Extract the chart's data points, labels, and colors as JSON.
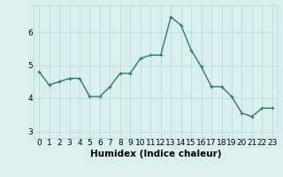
{
  "xlabel": "Humidex (Indice chaleur)",
  "x": [
    0,
    1,
    2,
    3,
    4,
    5,
    6,
    7,
    8,
    9,
    10,
    11,
    12,
    13,
    14,
    15,
    16,
    17,
    18,
    19,
    20,
    21,
    22,
    23
  ],
  "y": [
    4.8,
    4.4,
    4.5,
    4.6,
    4.6,
    4.05,
    4.05,
    4.35,
    4.75,
    4.75,
    5.2,
    5.3,
    5.3,
    6.45,
    6.2,
    5.45,
    4.95,
    4.35,
    4.35,
    4.05,
    3.55,
    3.45,
    3.7,
    3.7
  ],
  "line_color": "#2a7a6a",
  "bg_color": "#daf0f0",
  "grid_color": "#b0d8d8",
  "ylim": [
    2.8,
    6.8
  ],
  "xlim": [
    -0.5,
    23.5
  ],
  "yticks": [
    3,
    4,
    5,
    6
  ],
  "xticks": [
    0,
    1,
    2,
    3,
    4,
    5,
    6,
    7,
    8,
    9,
    10,
    11,
    12,
    13,
    14,
    15,
    16,
    17,
    18,
    19,
    20,
    21,
    22,
    23
  ],
  "tick_fontsize": 6.5,
  "xlabel_fontsize": 7.5,
  "marker": "+",
  "marker_size": 3,
  "line_width": 1.0
}
